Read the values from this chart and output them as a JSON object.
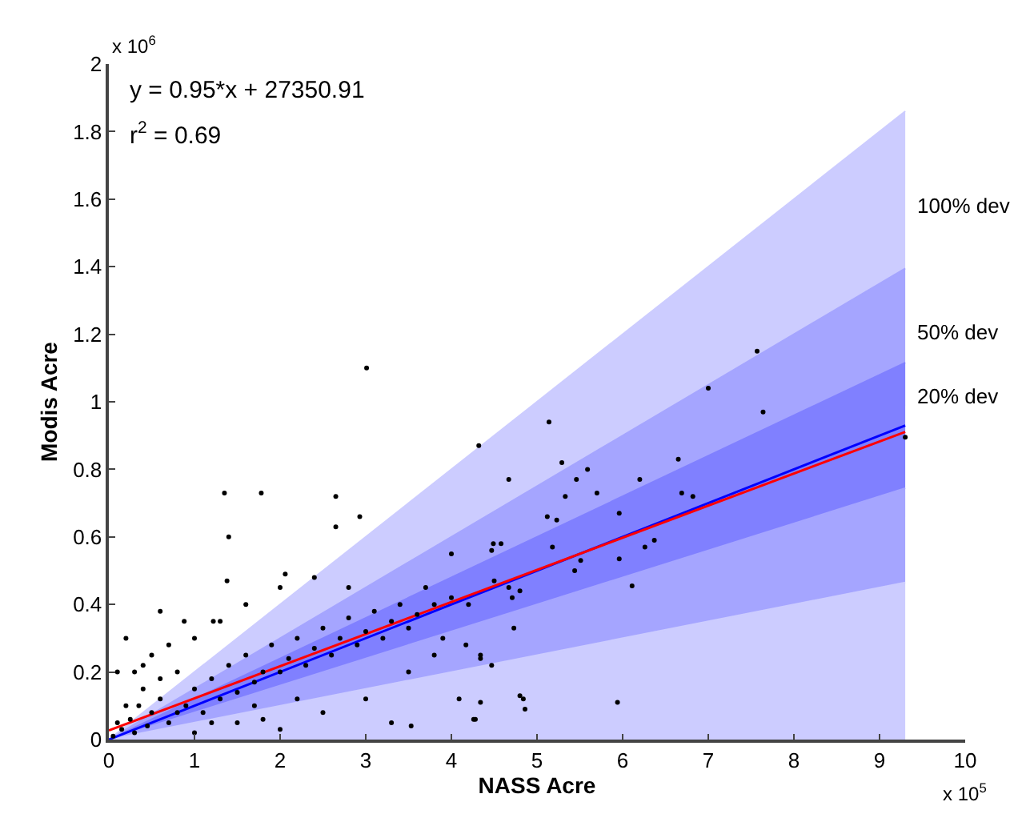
{
  "chart_data": {
    "type": "scatter",
    "xlabel": "NASS Acre",
    "ylabel": "Modis Acre",
    "xlim": [
      0,
      10
    ],
    "xticks": [
      0,
      1,
      2,
      3,
      4,
      5,
      6,
      7,
      8,
      9,
      10
    ],
    "ylim": [
      0,
      2
    ],
    "yticks": [
      0,
      0.2,
      0.4,
      0.6,
      0.8,
      1,
      1.2,
      1.4,
      1.6,
      1.8,
      2
    ],
    "grid": false,
    "annotations": [
      "x 10$^{6}$",
      "x 10$^{5}$",
      "y = 0.95*x + 27350.91",
      "r$^{2}$ = 0.69",
      "100% dev",
      "50% dev",
      "20% dev"
    ],
    "stacked": true,
    "series": [
      {
        "type": "area",
        "color": "#ccccff",
        "x": [
          0,
          9.3
        ],
        "values": [
          0,
          0.465
        ]
      },
      {
        "type": "area",
        "color": "#a5a5ff",
        "x": [
          0,
          9.3
        ],
        "values": [
          0,
          0.279
        ]
      },
      {
        "type": "area",
        "color": "#8080ff",
        "x": [
          0,
          9.3
        ],
        "values": [
          0,
          0.372
        ]
      },
      {
        "type": "area",
        "color": "#a5a5ff",
        "x": [
          0,
          9.3
        ],
        "values": [
          0,
          0.279
        ]
      },
      {
        "type": "area",
        "color": "#ccccff",
        "x": [
          0,
          9.3
        ],
        "values": [
          0,
          0.465
        ]
      },
      {
        "type": "line",
        "color": "#0000ff",
        "x": [
          0,
          9.3
        ],
        "values": [
          0,
          0.93
        ]
      },
      {
        "type": "line",
        "color": "#ff0000",
        "x": [
          0,
          9.3
        ],
        "values": [
          0.027,
          0.911
        ]
      },
      {
        "color": "#000000",
        "marker": "circle",
        "x": [
          3.01,
          7.57,
          7.0,
          7.64,
          9.3,
          5.14,
          4.32,
          4.67,
          5.29,
          5.59,
          6.2,
          6.65,
          6.69,
          6.82,
          5.33,
          5.7,
          5.12,
          5.96,
          5.46,
          6.11,
          6.26,
          6.37,
          5.51,
          5.44,
          5.96,
          4.73,
          5.94,
          4.84,
          4.34,
          4.26,
          4.34,
          4.47,
          4.17,
          4.67,
          4.8,
          4.49,
          4.47,
          4.58,
          5.23,
          5.18,
          4.0,
          1.35,
          1.78,
          2.65,
          1.4,
          2.93,
          2.65,
          1.38,
          0.6,
          2.06,
          0.88,
          1.22,
          4.86,
          4.8,
          4.28,
          3.53,
          4.71,
          4.34,
          4.09,
          0.1,
          0.2,
          0.3,
          0.4,
          0.5,
          0.6,
          0.7,
          0.8,
          0.9,
          1.0,
          1.1,
          1.2,
          1.3,
          1.4,
          1.5,
          1.6,
          1.7,
          1.8,
          1.9,
          2.0,
          2.1,
          2.2,
          2.3,
          2.4,
          2.5,
          2.6,
          2.7,
          2.8,
          2.9,
          3.0,
          3.1,
          3.2,
          3.3,
          3.4,
          3.5,
          3.6,
          3.8,
          4.0,
          0.2,
          0.5,
          0.3,
          0.7,
          1.0,
          1.3,
          1.6,
          2.0,
          2.4,
          2.8,
          1.0,
          1.5,
          2.0,
          2.5,
          3.0,
          3.3,
          2.2,
          1.8,
          0.05,
          0.15,
          0.25,
          0.35,
          0.45,
          0.6,
          0.8,
          1.2,
          1.7,
          3.5,
          3.8,
          3.7,
          4.2,
          4.5,
          3.9,
          0.1,
          0.4
        ],
        "values": [
          1.1,
          1.15,
          1.04,
          0.97,
          0.895,
          0.94,
          0.87,
          0.77,
          0.82,
          0.8,
          0.77,
          0.83,
          0.73,
          0.72,
          0.72,
          0.73,
          0.66,
          0.67,
          0.77,
          0.455,
          0.57,
          0.59,
          0.53,
          0.5,
          0.535,
          0.33,
          0.11,
          0.12,
          0.11,
          0.06,
          0.24,
          0.22,
          0.28,
          0.45,
          0.44,
          0.58,
          0.56,
          0.58,
          0.65,
          0.57,
          0.55,
          0.73,
          0.73,
          0.72,
          0.6,
          0.66,
          0.63,
          0.47,
          0.38,
          0.49,
          0.35,
          0.35,
          0.09,
          0.13,
          0.06,
          0.04,
          0.42,
          0.25,
          0.12,
          0.05,
          0.1,
          0.02,
          0.15,
          0.08,
          0.12,
          0.05,
          0.2,
          0.1,
          0.15,
          0.08,
          0.18,
          0.12,
          0.22,
          0.14,
          0.25,
          0.17,
          0.2,
          0.28,
          0.2,
          0.24,
          0.3,
          0.22,
          0.27,
          0.33,
          0.25,
          0.3,
          0.36,
          0.28,
          0.32,
          0.38,
          0.3,
          0.35,
          0.4,
          0.33,
          0.37,
          0.4,
          0.42,
          0.3,
          0.25,
          0.2,
          0.28,
          0.3,
          0.35,
          0.4,
          0.45,
          0.48,
          0.45,
          0.02,
          0.05,
          0.03,
          0.08,
          0.12,
          0.05,
          0.12,
          0.06,
          0.01,
          0.03,
          0.06,
          0.1,
          0.04,
          0.18,
          0.08,
          0.05,
          0.1,
          0.2,
          0.25,
          0.45,
          0.4,
          0.47,
          0.3,
          0.2,
          0.22
        ]
      }
    ]
  }
}
